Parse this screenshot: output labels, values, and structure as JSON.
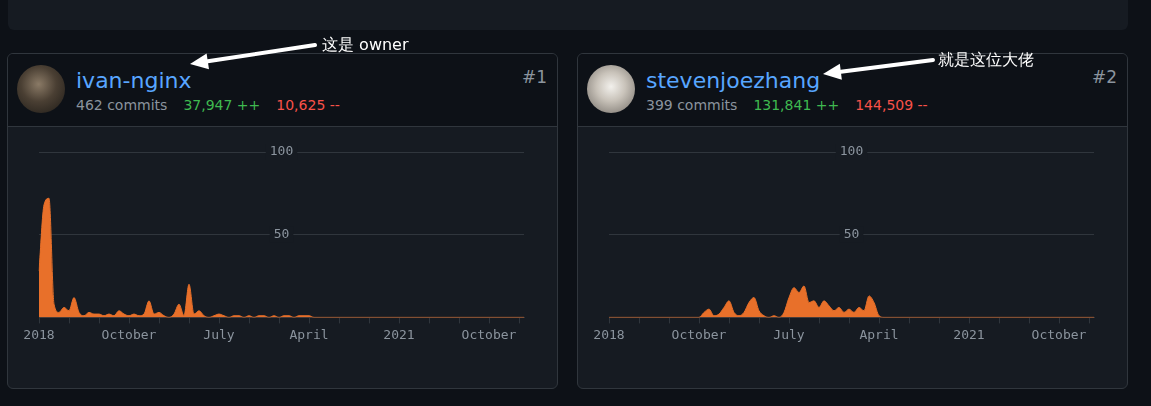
{
  "cards": [
    {
      "rank": "#1",
      "user": "ivan-nginx",
      "commits": "462 commits",
      "additions": "37,947 ++",
      "deletions": "10,625 --",
      "annotation": "这是 owner"
    },
    {
      "rank": "#2",
      "user": "stevenjoezhang",
      "commits": "399 commits",
      "additions": "131,841 ++",
      "deletions": "144,509 --",
      "annotation": "就是这位大佬"
    }
  ],
  "chart_data": [
    {
      "type": "area",
      "color": "#e8702a",
      "ylim": [
        0,
        100
      ],
      "yticks": [
        50,
        100
      ],
      "grid": true,
      "categories": [
        "2018",
        null,
        null,
        null,
        null,
        null,
        null,
        null,
        null,
        null,
        null,
        null,
        null,
        null,
        null,
        null,
        null,
        null,
        "October",
        null,
        null,
        null,
        null,
        null,
        null,
        null,
        null,
        null,
        null,
        null,
        null,
        null,
        null,
        null,
        null,
        null,
        "July",
        null,
        null,
        null,
        null,
        null,
        null,
        null,
        null,
        null,
        null,
        null,
        null,
        null,
        null,
        null,
        null,
        null,
        "April",
        null,
        null,
        null,
        null,
        null,
        null,
        null,
        null,
        null,
        null,
        null,
        null,
        null,
        null,
        null,
        null,
        null,
        "2021",
        null,
        null,
        null,
        null,
        null,
        null,
        null,
        null,
        null,
        null,
        null,
        null,
        null,
        null,
        null,
        null,
        null,
        "October",
        null,
        null,
        null,
        null,
        null,
        null,
        null
      ],
      "values": [
        28,
        68,
        72,
        8,
        3,
        6,
        4,
        12,
        3,
        1,
        3,
        2,
        2,
        1,
        2,
        1,
        4,
        2,
        1,
        2,
        1,
        2,
        10,
        2,
        3,
        1,
        0,
        2,
        8,
        1,
        20,
        2,
        4,
        1,
        0,
        1,
        2,
        1,
        0,
        1,
        1,
        0,
        1,
        0,
        1,
        1,
        0,
        1,
        0,
        1,
        1,
        0,
        1,
        1,
        1,
        0,
        0,
        0,
        0,
        0,
        0,
        0,
        0,
        0,
        0,
        0,
        0,
        0,
        0,
        0,
        0,
        0,
        0,
        0,
        0,
        0,
        0,
        0,
        0,
        0,
        0,
        0,
        0,
        0,
        0,
        0,
        0,
        0,
        0,
        0,
        0,
        0,
        0,
        0,
        0,
        0,
        0,
        0
      ]
    },
    {
      "type": "area",
      "color": "#e8702a",
      "ylim": [
        0,
        100
      ],
      "yticks": [
        50,
        100
      ],
      "grid": true,
      "categories": [
        "2018",
        null,
        null,
        null,
        null,
        null,
        null,
        null,
        null,
        null,
        null,
        null,
        null,
        null,
        null,
        null,
        null,
        null,
        "October",
        null,
        null,
        null,
        null,
        null,
        null,
        null,
        null,
        null,
        null,
        null,
        null,
        null,
        null,
        null,
        null,
        null,
        "July",
        null,
        null,
        null,
        null,
        null,
        null,
        null,
        null,
        null,
        null,
        null,
        null,
        null,
        null,
        null,
        null,
        null,
        "April",
        null,
        null,
        null,
        null,
        null,
        null,
        null,
        null,
        null,
        null,
        null,
        null,
        null,
        null,
        null,
        null,
        null,
        "2021",
        null,
        null,
        null,
        null,
        null,
        null,
        null,
        null,
        null,
        null,
        null,
        null,
        null,
        null,
        null,
        null,
        null,
        "October",
        null,
        null,
        null,
        null,
        null,
        null,
        null
      ],
      "values": [
        0,
        0,
        0,
        0,
        0,
        0,
        0,
        0,
        0,
        0,
        0,
        0,
        0,
        0,
        0,
        0,
        0,
        0,
        0,
        3,
        5,
        1,
        2,
        6,
        10,
        3,
        1,
        3,
        9,
        12,
        4,
        1,
        0,
        1,
        0,
        3,
        12,
        18,
        15,
        19,
        9,
        10,
        6,
        10,
        7,
        4,
        6,
        3,
        5,
        3,
        6,
        4,
        13,
        9,
        1,
        0,
        0,
        0,
        0,
        0,
        0,
        0,
        0,
        0,
        0,
        0,
        0,
        0,
        0,
        0,
        0,
        0,
        0,
        0,
        0,
        0,
        0,
        0,
        0,
        0,
        0,
        0,
        0,
        0,
        0,
        0,
        0,
        0,
        0,
        0,
        0,
        0,
        0,
        0,
        0,
        0,
        0,
        0
      ]
    }
  ]
}
